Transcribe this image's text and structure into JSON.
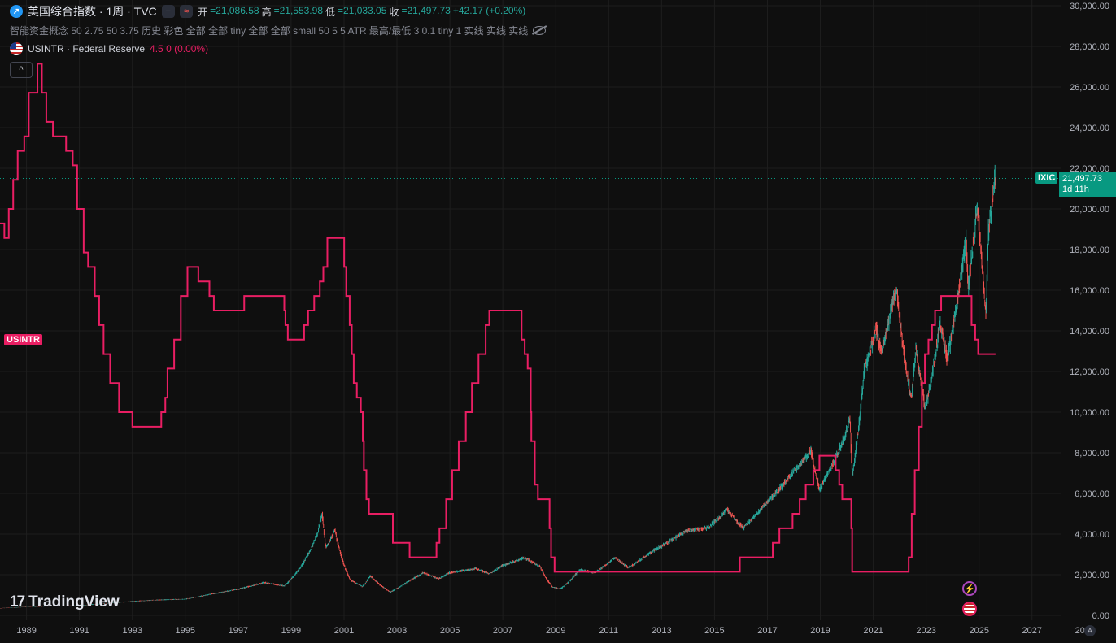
{
  "header": {
    "symbol_title": "美国综合指数 · 1周 · TVC",
    "pill_a": "−",
    "pill_b": "≈",
    "ohlc": {
      "open_label": "开",
      "open": "=21,086.58",
      "high_label": "高",
      "high": "=21,553.98",
      "low_label": "低",
      "low": "=21,033.05",
      "close_label": "收",
      "close": "=21,497.73",
      "change": "+42.17 (+0.20%)"
    },
    "indicator_line": "智能资金概念 50 2.75 50 3.75 历史 彩色 全部 全部 tiny 全部 全部 small 50 5 5 ATR 最高/最低 3 0.1 tiny 1 实线 实线 实线",
    "overlay": {
      "name": "USINTR · Federal Reserve",
      "values": "4.5  0 (0.00%)"
    },
    "collapse_icon": "^"
  },
  "tags": {
    "usintr_label": "USINTR",
    "ixic_label": "IXIC",
    "last_price": "21,497.73",
    "countdown": "1d 11h"
  },
  "watermark": {
    "brand": "TradingView",
    "mark": "17"
  },
  "event_icon": "⚡",
  "corner_button": "A",
  "colors": {
    "background": "#0f0f0f",
    "grid": "#1e1e1e",
    "up": "#26a69a",
    "down": "#ef5350",
    "overlay_line": "#e91e63",
    "price_tag": "#089981"
  },
  "chart_data": {
    "type": "line",
    "x_axis": {
      "type": "date",
      "range": [
        "1988-01-01",
        "2028-02-01"
      ],
      "tick_labels": [
        "1989",
        "1991",
        "1993",
        "1995",
        "1997",
        "1999",
        "2001",
        "2003",
        "2005",
        "2007",
        "2009",
        "2011",
        "2013",
        "2015",
        "2017",
        "2019",
        "2021",
        "2023",
        "2025",
        "2027",
        "2029"
      ]
    },
    "y_axis": {
      "position": "right",
      "range": [
        0,
        30000
      ],
      "tick_values": [
        0,
        2000,
        4000,
        6000,
        8000,
        10000,
        12000,
        14000,
        16000,
        18000,
        20000,
        22000,
        24000,
        26000,
        28000,
        30000
      ],
      "tick_labels": [
        "0.00",
        "2,000.00",
        "4,000.00",
        "6,000.00",
        "8,000.00",
        "10,000.00",
        "12,000.00",
        "14,000.00",
        "16,000.00",
        "18,000.00",
        "20,000.00",
        "22,000.00",
        "24,000.00",
        "26,000.00",
        "28,000.00",
        "30,000.00"
      ]
    },
    "grid": true,
    "last_price_line": 21497.73,
    "series": [
      {
        "name": "IXIC",
        "style": "candles",
        "points": [
          [
            "1988-01-01",
            350
          ],
          [
            "1989-01-01",
            420
          ],
          [
            "1990-01-01",
            460
          ],
          [
            "1991-01-01",
            480
          ],
          [
            "1992-01-01",
            590
          ],
          [
            "1993-01-01",
            690
          ],
          [
            "1994-01-01",
            760
          ],
          [
            "1995-01-01",
            800
          ],
          [
            "1996-01-01",
            1050
          ],
          [
            "1997-01-01",
            1290
          ],
          [
            "1998-01-01",
            1620
          ],
          [
            "1998-10-01",
            1450
          ],
          [
            "1999-06-01",
            2450
          ],
          [
            "2000-01-01",
            4000
          ],
          [
            "2000-03-10",
            5050
          ],
          [
            "2000-05-01",
            3300
          ],
          [
            "2000-09-01",
            4200
          ],
          [
            "2001-04-01",
            1750
          ],
          [
            "2001-09-21",
            1420
          ],
          [
            "2002-01-01",
            1950
          ],
          [
            "2002-10-09",
            1150
          ],
          [
            "2003-06-01",
            1650
          ],
          [
            "2004-01-01",
            2100
          ],
          [
            "2004-08-01",
            1800
          ],
          [
            "2005-01-01",
            2100
          ],
          [
            "2006-01-01",
            2300
          ],
          [
            "2006-07-01",
            2050
          ],
          [
            "2007-01-01",
            2450
          ],
          [
            "2007-10-31",
            2850
          ],
          [
            "2008-06-01",
            2400
          ],
          [
            "2008-11-20",
            1400
          ],
          [
            "2009-03-09",
            1300
          ],
          [
            "2009-12-01",
            2250
          ],
          [
            "2010-07-01",
            2100
          ],
          [
            "2011-04-01",
            2850
          ],
          [
            "2011-10-01",
            2350
          ],
          [
            "2012-09-01",
            3150
          ],
          [
            "2013-12-01",
            4150
          ],
          [
            "2014-10-01",
            4300
          ],
          [
            "2015-07-01",
            5200
          ],
          [
            "2016-02-01",
            4300
          ],
          [
            "2016-12-01",
            5450
          ],
          [
            "2017-12-01",
            6950
          ],
          [
            "2018-08-29",
            8100
          ],
          [
            "2018-12-24",
            6200
          ],
          [
            "2019-12-31",
            9000
          ],
          [
            "2020-02-19",
            9800
          ],
          [
            "2020-03-23",
            6900
          ],
          [
            "2020-09-01",
            12000
          ],
          [
            "2021-02-12",
            14100
          ],
          [
            "2021-05-01",
            13000
          ],
          [
            "2021-11-19",
            16200
          ],
          [
            "2022-03-01",
            13000
          ],
          [
            "2022-06-16",
            10600
          ],
          [
            "2022-08-16",
            13200
          ],
          [
            "2022-12-28",
            10200
          ],
          [
            "2023-07-19",
            14400
          ],
          [
            "2023-10-27",
            12600
          ],
          [
            "2024-07-10",
            18600
          ],
          [
            "2024-08-05",
            16200
          ],
          [
            "2024-12-16",
            20200
          ],
          [
            "2025-04-07",
            15000
          ],
          [
            "2025-04-08",
            14800
          ],
          [
            "2025-05-15",
            19000
          ],
          [
            "2025-07-01",
            20200
          ],
          [
            "2025-08-15",
            21497.73
          ]
        ]
      },
      {
        "name": "USINTR",
        "style": "step",
        "scale_note": "overlay on separate scale, 0–10%",
        "scale_range": [
          0,
          10.5
        ],
        "points": [
          [
            "1988-01-01",
            6.75
          ],
          [
            "1988-03-01",
            6.5
          ],
          [
            "1988-05-01",
            7.0
          ],
          [
            "1988-07-01",
            7.5
          ],
          [
            "1988-09-01",
            8.0
          ],
          [
            "1988-12-01",
            8.25
          ],
          [
            "1989-02-01",
            9.0
          ],
          [
            "1989-06-01",
            9.5
          ],
          [
            "1989-08-01",
            9.0
          ],
          [
            "1989-10-01",
            8.5
          ],
          [
            "1990-01-01",
            8.25
          ],
          [
            "1990-07-01",
            8.0
          ],
          [
            "1990-10-01",
            7.75
          ],
          [
            "1990-12-01",
            7.0
          ],
          [
            "1991-03-01",
            6.25
          ],
          [
            "1991-05-01",
            6.0
          ],
          [
            "1991-08-01",
            5.5
          ],
          [
            "1991-10-01",
            5.0
          ],
          [
            "1991-12-01",
            4.5
          ],
          [
            "1992-03-01",
            4.0
          ],
          [
            "1992-07-01",
            3.5
          ],
          [
            "1993-01-01",
            3.25
          ],
          [
            "1994-01-01",
            3.25
          ],
          [
            "1994-02-04",
            3.5
          ],
          [
            "1994-04-01",
            3.75
          ],
          [
            "1994-05-01",
            4.25
          ],
          [
            "1994-08-01",
            4.75
          ],
          [
            "1994-11-01",
            5.5
          ],
          [
            "1995-02-01",
            6.0
          ],
          [
            "1995-07-01",
            5.75
          ],
          [
            "1995-12-01",
            5.5
          ],
          [
            "1996-01-31",
            5.25
          ],
          [
            "1997-03-25",
            5.5
          ],
          [
            "1998-09-29",
            5.25
          ],
          [
            "1998-10-15",
            5.0
          ],
          [
            "1998-11-17",
            4.75
          ],
          [
            "1999-06-30",
            5.0
          ],
          [
            "1999-08-24",
            5.25
          ],
          [
            "1999-11-16",
            5.5
          ],
          [
            "2000-02-02",
            5.75
          ],
          [
            "2000-03-21",
            6.0
          ],
          [
            "2000-05-16",
            6.5
          ],
          [
            "2001-01-03",
            6.0
          ],
          [
            "2001-01-31",
            5.5
          ],
          [
            "2001-03-20",
            5.0
          ],
          [
            "2001-04-18",
            4.5
          ],
          [
            "2001-05-15",
            4.0
          ],
          [
            "2001-06-27",
            3.75
          ],
          [
            "2001-08-21",
            3.5
          ],
          [
            "2001-09-17",
            3.0
          ],
          [
            "2001-10-02",
            2.5
          ],
          [
            "2001-11-06",
            2.0
          ],
          [
            "2001-12-11",
            1.75
          ],
          [
            "2002-11-06",
            1.25
          ],
          [
            "2003-06-25",
            1.0
          ],
          [
            "2004-06-30",
            1.25
          ],
          [
            "2004-08-10",
            1.5
          ],
          [
            "2004-11-10",
            2.0
          ],
          [
            "2005-02-02",
            2.5
          ],
          [
            "2005-05-03",
            3.0
          ],
          [
            "2005-08-09",
            3.5
          ],
          [
            "2005-11-01",
            4.0
          ],
          [
            "2006-01-31",
            4.5
          ],
          [
            "2006-05-10",
            5.0
          ],
          [
            "2006-06-29",
            5.25
          ],
          [
            "2007-09-18",
            4.75
          ],
          [
            "2007-10-31",
            4.5
          ],
          [
            "2007-12-11",
            4.25
          ],
          [
            "2008-01-22",
            3.5
          ],
          [
            "2008-01-30",
            3.0
          ],
          [
            "2008-03-18",
            2.25
          ],
          [
            "2008-04-30",
            2.0
          ],
          [
            "2008-10-08",
            1.5
          ],
          [
            "2008-10-29",
            1.0
          ],
          [
            "2008-12-16",
            0.75
          ],
          [
            "2015-12-17",
            1.0
          ],
          [
            "2016-12-15",
            1.0
          ],
          [
            "2017-03-16",
            1.25
          ],
          [
            "2017-06-15",
            1.5
          ],
          [
            "2017-12-14",
            1.75
          ],
          [
            "2018-03-22",
            2.0
          ],
          [
            "2018-06-14",
            2.25
          ],
          [
            "2018-09-27",
            2.5
          ],
          [
            "2018-12-20",
            2.75
          ],
          [
            "2019-08-01",
            2.5
          ],
          [
            "2019-09-19",
            2.25
          ],
          [
            "2019-10-31",
            2.0
          ],
          [
            "2020-03-04",
            1.5
          ],
          [
            "2020-03-16",
            0.75
          ],
          [
            "2022-03-17",
            0.75
          ],
          [
            "2022-05-05",
            1.0
          ],
          [
            "2022-06-16",
            1.75
          ],
          [
            "2022-07-28",
            2.5
          ],
          [
            "2022-09-22",
            3.25
          ],
          [
            "2022-11-03",
            4.0
          ],
          [
            "2022-12-15",
            4.5
          ],
          [
            "2023-02-02",
            4.75
          ],
          [
            "2023-03-23",
            5.0
          ],
          [
            "2023-05-04",
            5.25
          ],
          [
            "2023-07-27",
            5.5
          ],
          [
            "2024-09-19",
            5.0
          ],
          [
            "2024-11-08",
            4.75
          ],
          [
            "2024-12-19",
            4.5
          ],
          [
            "2025-08-15",
            4.5
          ]
        ]
      }
    ]
  }
}
